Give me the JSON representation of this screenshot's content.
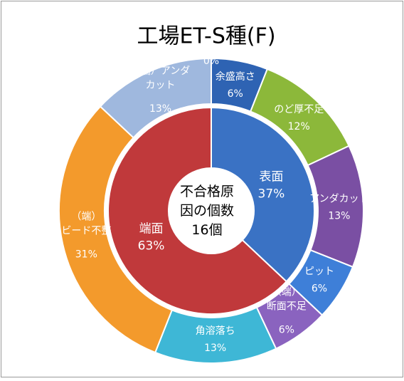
{
  "chart_data": {
    "type": "donut",
    "title": "工場ET-S種(F)",
    "center_text": "不合格原\n因の個数\n16個",
    "inner": {
      "categories": [
        "表面",
        "端面"
      ],
      "values": [
        37,
        63
      ],
      "value_labels": [
        "37%",
        "63%"
      ],
      "colors": [
        "#3a72c4",
        "#c0393b"
      ]
    },
    "outer": {
      "categories": [
        "余盛高さ",
        "のど厚不足",
        "アンダカット",
        "ピット",
        "（端）\n断面不足",
        "角溶落ち",
        "（端）\nビード不整",
        "（端）アンダ\nカット",
        null
      ],
      "values": [
        6,
        12,
        13,
        6,
        6,
        13,
        31,
        13,
        0
      ],
      "value_labels": [
        "6%",
        "12%",
        "13%",
        "6%",
        "6%",
        "13%",
        "31%",
        "13%",
        "0%"
      ],
      "colors": [
        "#2e63b3",
        "#8cb83a",
        "#7a4fa3",
        "#3e7fd8",
        "#8a63bf",
        "#3eb7d6",
        "#f39a2c",
        "#9fb8de",
        "#bbbbbb"
      ]
    }
  }
}
